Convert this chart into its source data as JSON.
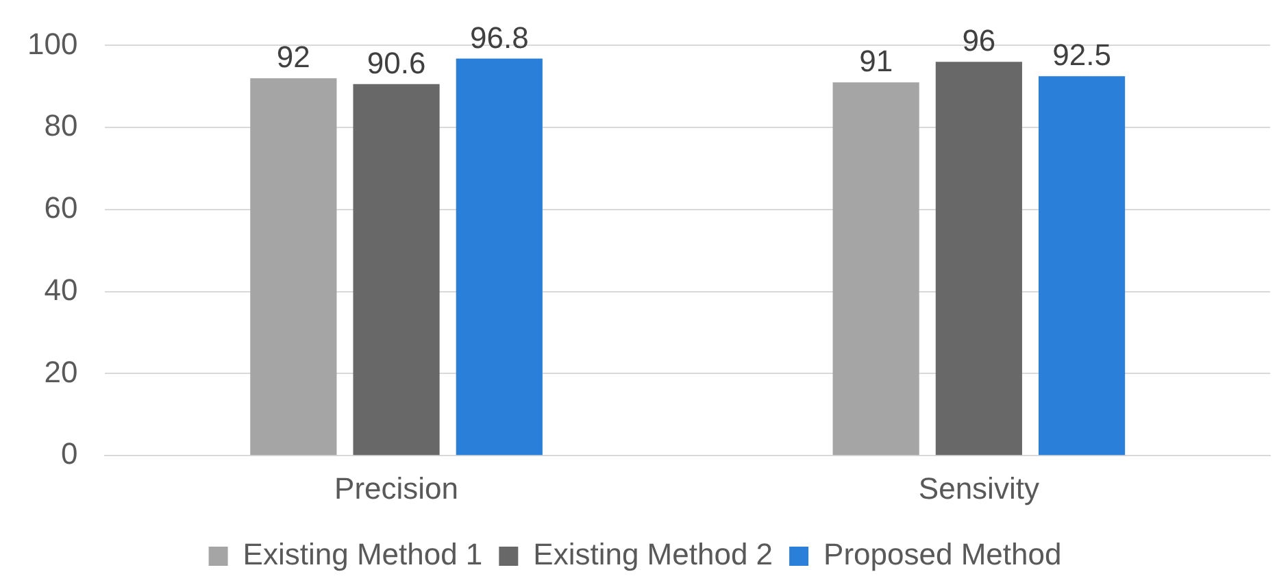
{
  "chart_data": {
    "type": "bar",
    "categories": [
      "Precision",
      "Sensivity"
    ],
    "series": [
      {
        "name": "Existing Method 1",
        "color": "#a5a5a5",
        "values": [
          92,
          91
        ]
      },
      {
        "name": "Existing Method 2",
        "color": "#686868",
        "values": [
          90.6,
          96
        ]
      },
      {
        "name": "Proposed Method",
        "color": "#2a7fd9",
        "values": [
          96.8,
          92.5
        ]
      }
    ],
    "ylim": [
      0,
      100
    ],
    "yticks": [
      0,
      20,
      40,
      60,
      80,
      100
    ],
    "grid": "y",
    "legend": "bottom",
    "data_labels": true
  }
}
